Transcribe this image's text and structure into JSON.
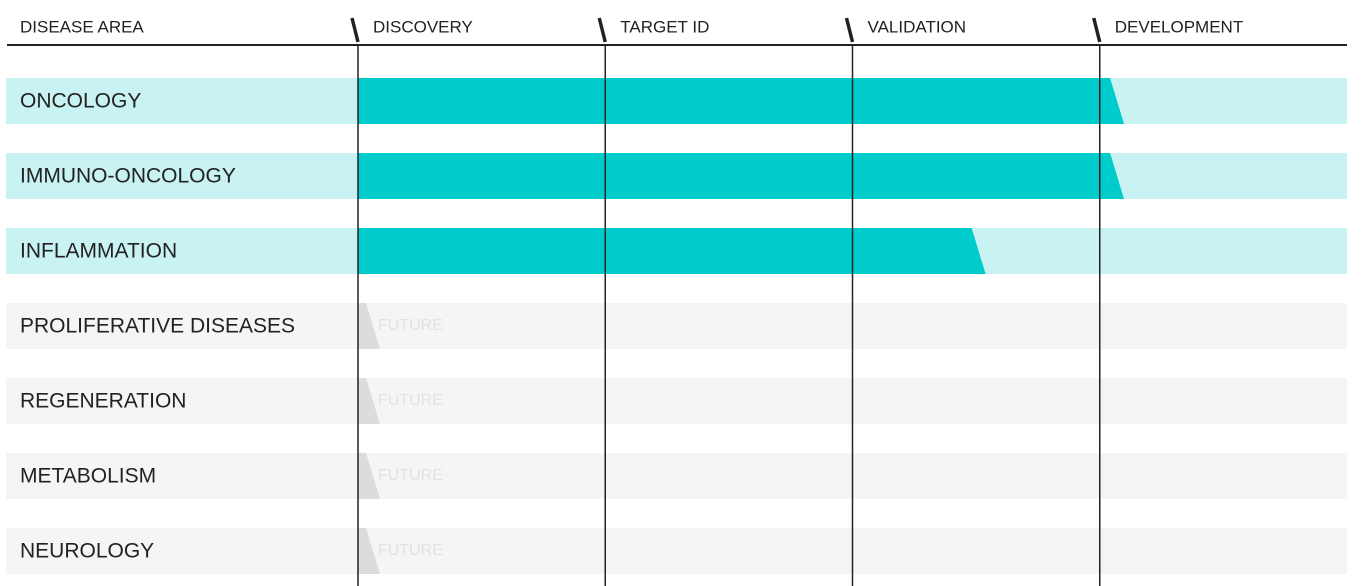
{
  "chart_data": {
    "type": "pipeline",
    "category_header": "DISEASE AREA",
    "categories": [
      "ONCOLOGY",
      "IMMUNO-ONCOLOGY",
      "INFLAMMATION",
      "PROLIFERATIVE DISEASES",
      "REGENERATION",
      "METABOLISM",
      "NEUROLOGY"
    ],
    "values": [
      3.07,
      3.07,
      2.51,
      null,
      null,
      null,
      null
    ],
    "future_label": "FUTURE",
    "color": "#00cccc",
    "xlim": [
      0,
      4
    ],
    "xticks": [
      {
        "value": 0,
        "label": "DISCOVERY"
      },
      {
        "value": 1,
        "label": "TARGET ID"
      },
      {
        "value": 2,
        "label": "VALIDATION"
      },
      {
        "value": 3,
        "label": "DEVELOPMENT"
      }
    ],
    "grid": true
  }
}
